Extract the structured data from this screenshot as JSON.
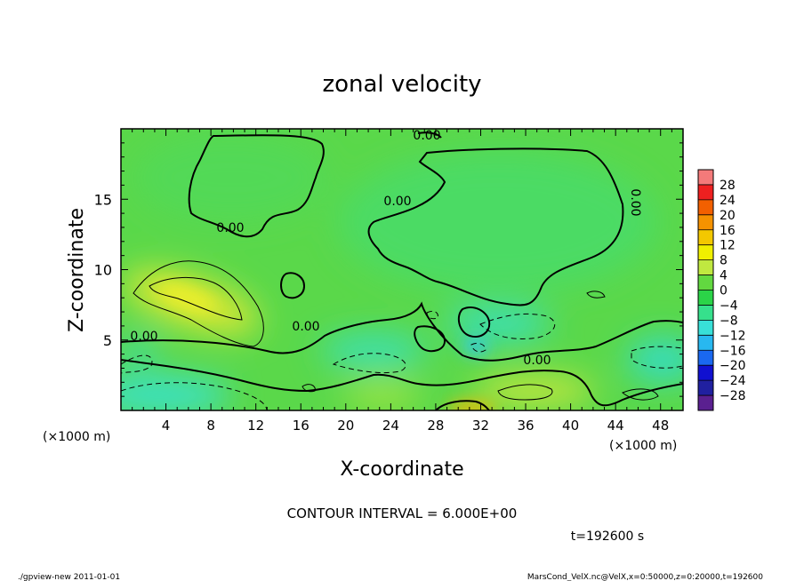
{
  "chart_data": {
    "type": "heatmap",
    "title": "zonal velocity",
    "xlabel": "X-coordinate",
    "ylabel": "Z-coordinate",
    "x_unit_label": "(×1000 m)",
    "y_unit_label": "(×1000 m)",
    "xlim": [
      0,
      50
    ],
    "ylim": [
      0,
      20
    ],
    "x_ticks": [
      "4",
      "8",
      "12",
      "16",
      "20",
      "24",
      "28",
      "32",
      "36",
      "40",
      "44",
      "48"
    ],
    "x_tick_values": [
      4,
      8,
      12,
      16,
      20,
      24,
      28,
      32,
      36,
      40,
      44,
      48
    ],
    "y_ticks": [
      "5",
      "10",
      "15"
    ],
    "y_tick_values": [
      5,
      10,
      15
    ],
    "colorbar": {
      "labels": [
        "28",
        "24",
        "20",
        "16",
        "12",
        "8",
        "4",
        "0",
        "−4",
        "−8",
        "−12",
        "−16",
        "−20",
        "−24",
        "−28"
      ],
      "colors": [
        "#f47a7a",
        "#ee2020",
        "#f26000",
        "#f59200",
        "#f3c800",
        "#f0f000",
        "#c0e840",
        "#62d840",
        "#2bd448",
        "#36e08c",
        "#38e0d8",
        "#28b8f0",
        "#1a68f0",
        "#1010d0",
        "#2020a0",
        "#5a2090"
      ]
    },
    "contour_labels": [
      "0.00",
      "0.00",
      "0.00",
      "0.00",
      "0.00",
      "0.00",
      "0.00",
      "0.00"
    ],
    "contour_interval_text": "CONTOUR INTERVAL = 6.000E+00",
    "time_text": "t=192600 s",
    "footer_left": "./gpview-new   2011-01-01",
    "footer_right": "MarsCond_VelX.nc@VelX,x=0:50000,z=0:20000,t=192600"
  }
}
